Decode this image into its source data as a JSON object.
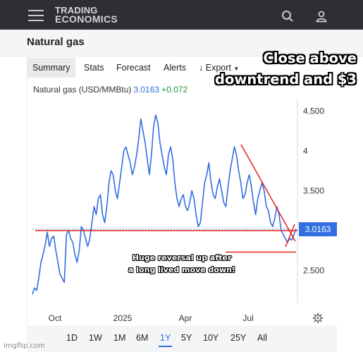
{
  "header": {
    "logo_line1": "TRADING",
    "logo_line2": "ECONOMICS"
  },
  "page": {
    "title": "Natural gas"
  },
  "tabs": [
    {
      "label": "Summary",
      "active": true
    },
    {
      "label": "Stats"
    },
    {
      "label": "Forecast"
    },
    {
      "label": "Alerts"
    },
    {
      "label": "Export",
      "icon": "download-icon",
      "dropdown": true
    }
  ],
  "ticker": {
    "name": "Natural gas (USD/MMBtu)",
    "price": "3.0163",
    "change": "+0.072"
  },
  "chart_data": {
    "type": "line",
    "x_labels": [
      "Oct",
      "2025",
      "Apr",
      "Jul"
    ],
    "y_ticks": [
      "4.500",
      "4",
      "3.500",
      "2.500"
    ],
    "ylim": [
      2.2,
      4.6
    ],
    "last_value_label": "3.0163",
    "line_color": "#2f6fe0",
    "series": [
      {
        "values": [
          2.2,
          2.28,
          2.25,
          2.4,
          2.6,
          2.7,
          2.82,
          2.98,
          2.8,
          2.9,
          2.93,
          2.75,
          2.6,
          2.45,
          2.4,
          2.35,
          2.95,
          3.0,
          2.9,
          2.85,
          2.7,
          2.6,
          2.75,
          3.05,
          3.0,
          2.9,
          2.8,
          2.9,
          3.1,
          3.3,
          3.2,
          3.4,
          3.45,
          3.2,
          3.1,
          3.3,
          3.6,
          3.75,
          3.7,
          3.5,
          3.4,
          3.6,
          3.8,
          4.0,
          4.05,
          3.95,
          3.85,
          3.7,
          3.8,
          3.95,
          4.15,
          4.4,
          4.25,
          4.1,
          3.9,
          3.7,
          3.95,
          4.3,
          4.45,
          4.35,
          4.1,
          3.95,
          3.8,
          3.7,
          3.95,
          4.05,
          3.9,
          3.6,
          3.4,
          3.3,
          3.4,
          3.45,
          3.3,
          3.25,
          3.35,
          3.5,
          3.4,
          3.2,
          3.05,
          3.1,
          3.35,
          3.6,
          3.7,
          3.85,
          3.6,
          3.45,
          3.4,
          3.55,
          3.65,
          3.5,
          3.35,
          3.3,
          3.55,
          3.75,
          3.9,
          4.05,
          3.95,
          3.75,
          3.6,
          3.4,
          3.45,
          3.6,
          3.7,
          3.55,
          3.35,
          3.2,
          3.4,
          3.5,
          3.6,
          3.5,
          3.3,
          3.25,
          3.1,
          3.05,
          3.15,
          3.3,
          3.2,
          3.0,
          2.95,
          2.9,
          2.85,
          2.9,
          2.88,
          2.95,
          3.02
        ]
      }
    ],
    "annotation_color": "#e82020",
    "annotations": {
      "top": [
        "Close above",
        "downtrend and $3"
      ],
      "middle": [
        "Huge reversal up after",
        "a long lived move down!"
      ]
    }
  },
  "ranges": [
    {
      "label": "1D"
    },
    {
      "label": "1W"
    },
    {
      "label": "1M"
    },
    {
      "label": "6M"
    },
    {
      "label": "1Y",
      "active": true
    },
    {
      "label": "5Y"
    },
    {
      "label": "10Y"
    },
    {
      "label": "25Y"
    },
    {
      "label": "All"
    }
  ],
  "watermark": "imgflip.com"
}
